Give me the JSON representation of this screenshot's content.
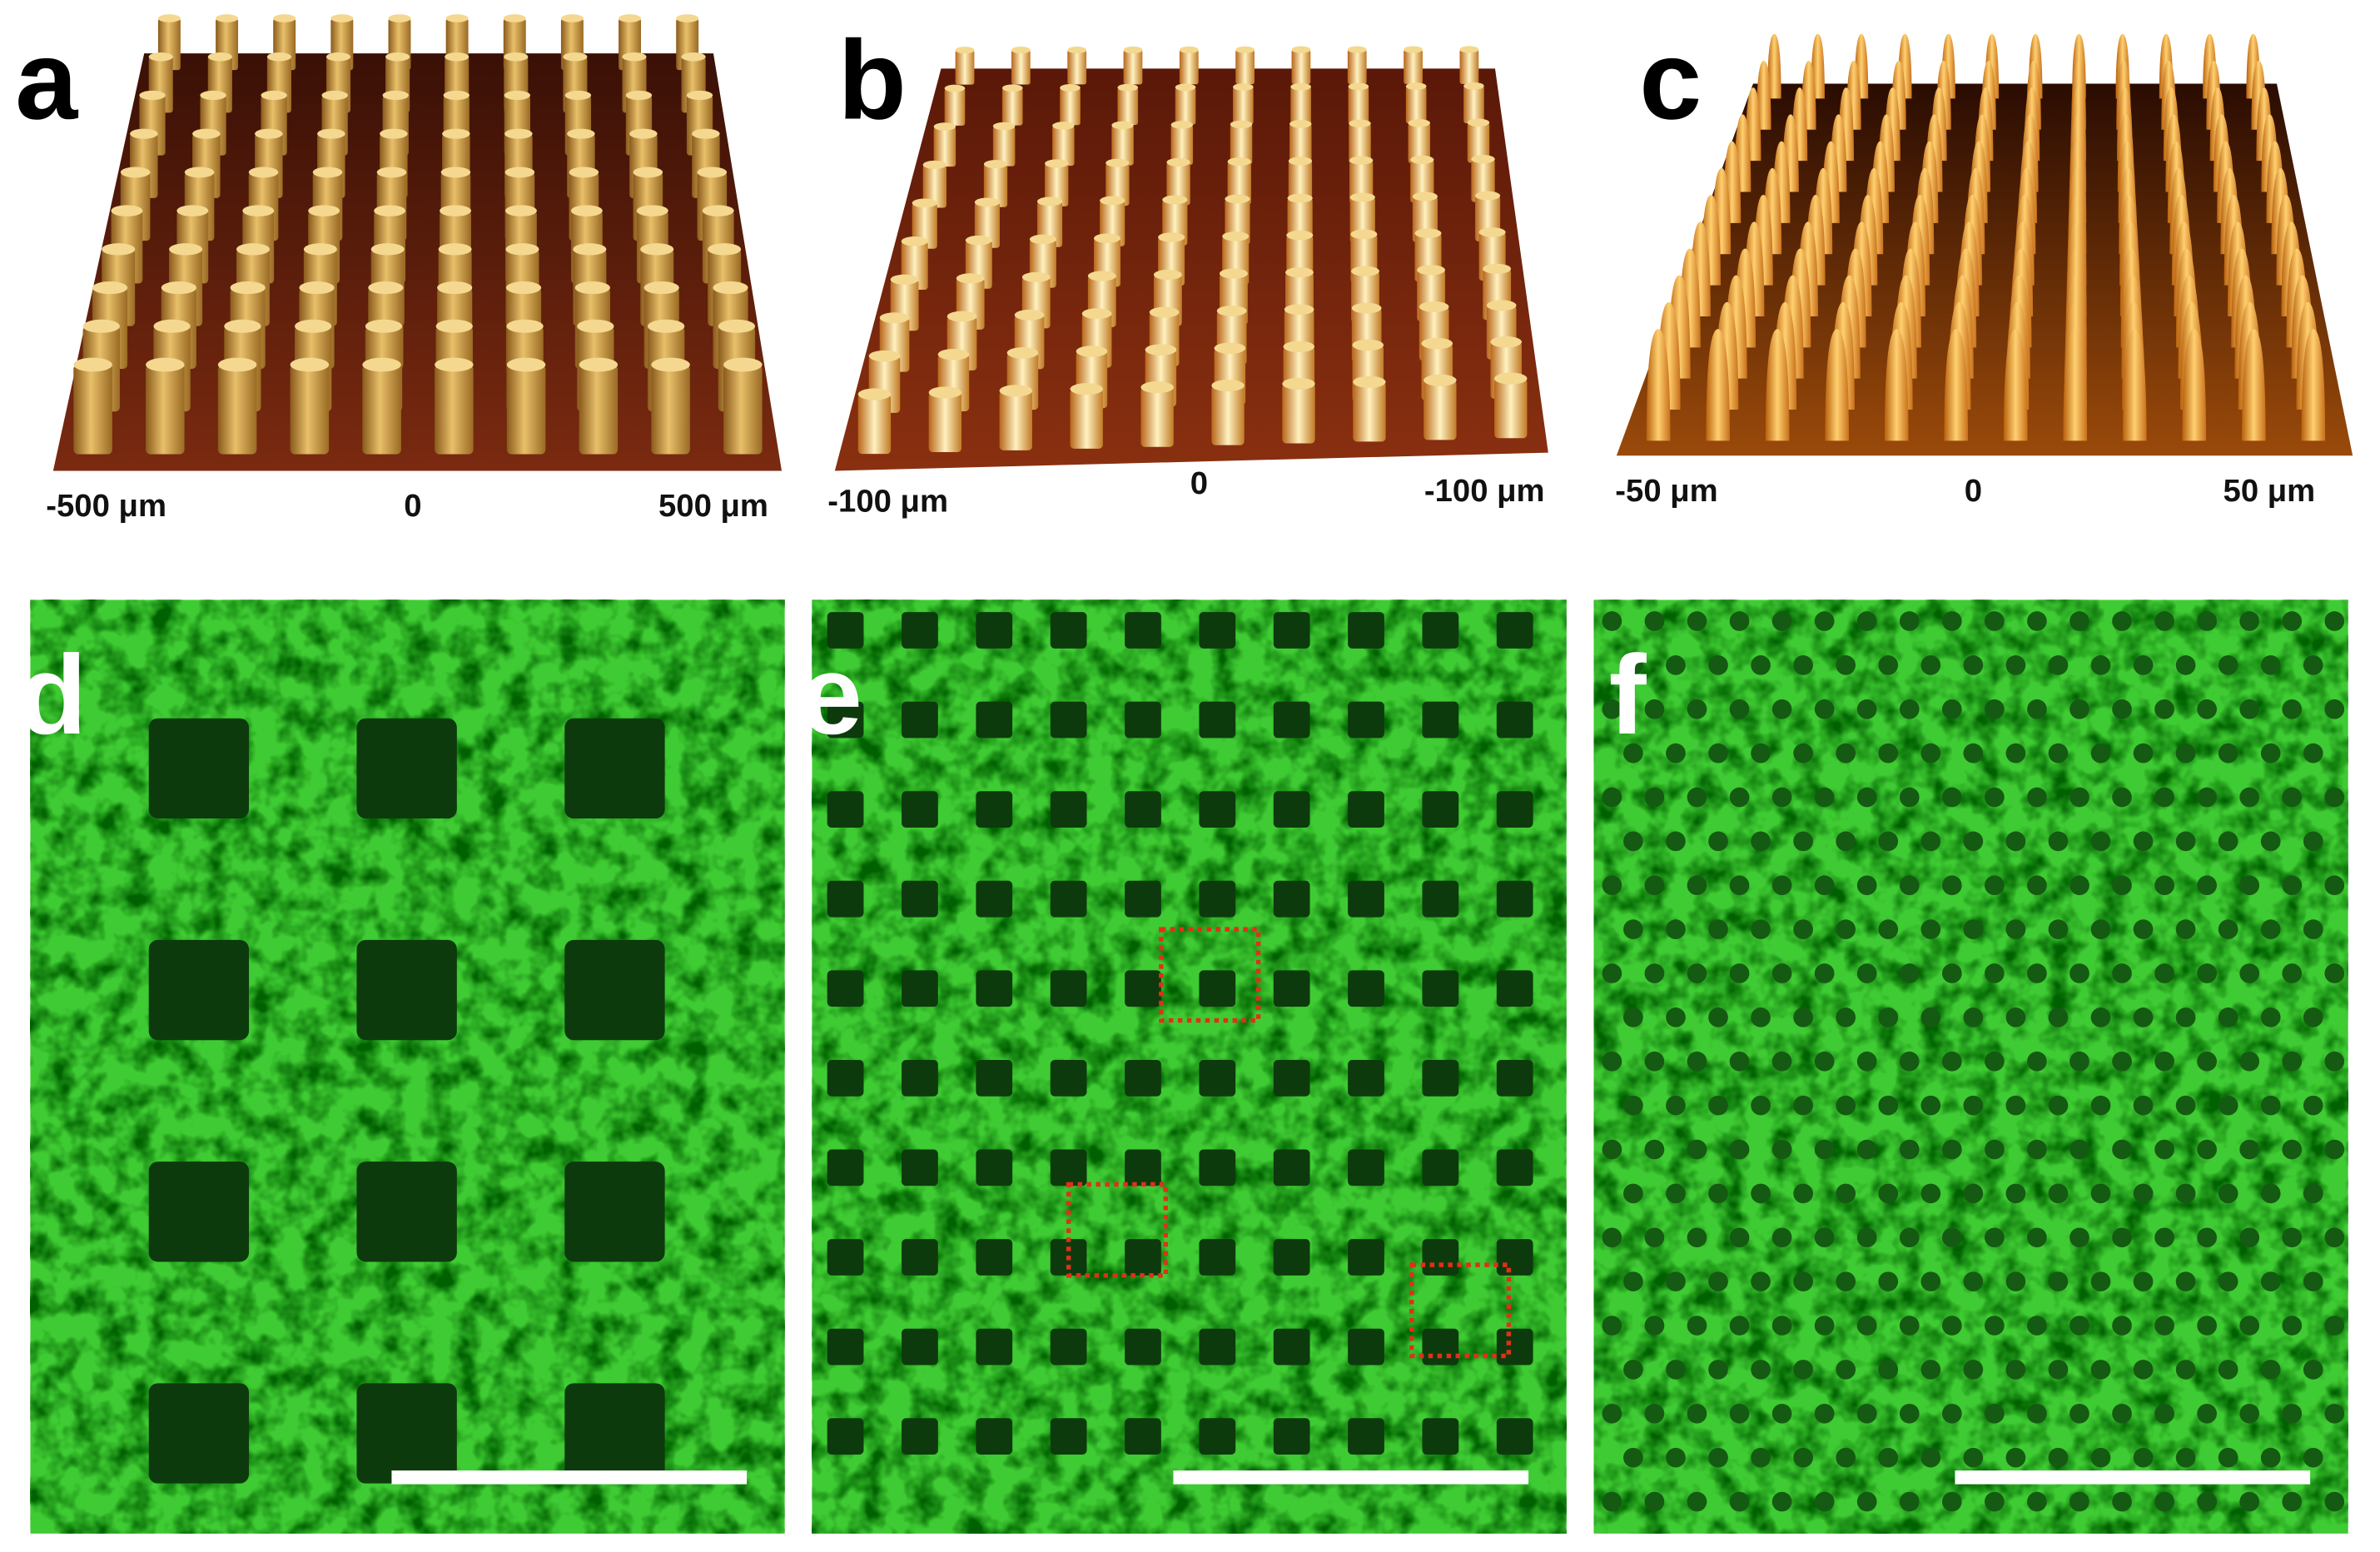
{
  "panels": [
    {
      "label": "a",
      "axis_labels": [
        "-500 μm",
        "0",
        "500 μm"
      ]
    },
    {
      "label": "b",
      "axis_labels": [
        "-100 μm",
        "0",
        "-100 μm"
      ]
    },
    {
      "label": "c",
      "axis_labels": [
        "-50 μm",
        "0",
        "50 μm"
      ]
    },
    {
      "label": "d"
    },
    {
      "label": "e"
    },
    {
      "label": "f"
    }
  ]
}
